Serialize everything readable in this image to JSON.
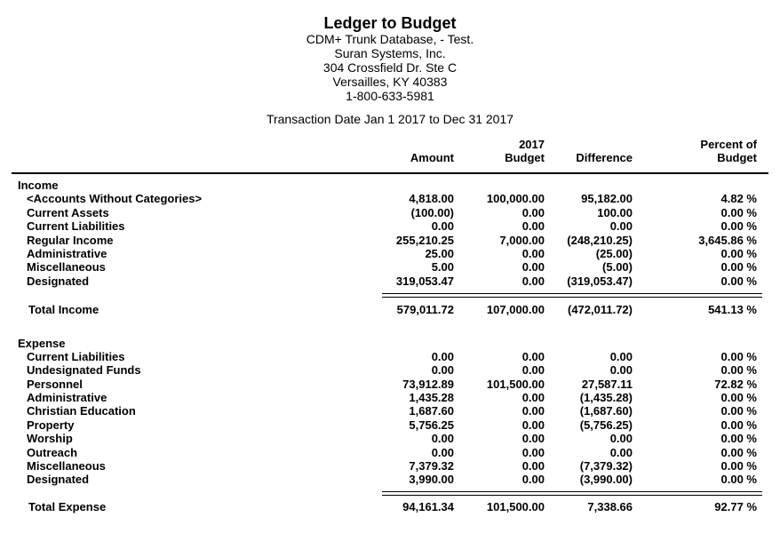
{
  "report": {
    "title": "Ledger to Budget",
    "subtitle_lines": [
      "CDM+ Trunk Database, - Test.",
      "Suran Systems, Inc.",
      "304 Crossfield Dr. Ste C",
      "Versailles, KY 40383",
      "1-800-633-5981"
    ],
    "date_range": "Transaction Date Jan 1 2017 to Dec 31 2017"
  },
  "table": {
    "columns": {
      "amount": "Amount",
      "budget_line1": "2017",
      "budget_line2": "Budget",
      "difference": "Difference",
      "percent_line1": "Percent of",
      "percent_line2": "Budget"
    },
    "sections": [
      {
        "name": "Income",
        "rows": [
          {
            "label": "<Accounts Without Categories>",
            "amount": "4,818.00",
            "budget": "100,000.00",
            "difference": "95,182.00",
            "percent": "4.82 %"
          },
          {
            "label": "Current Assets",
            "amount": "(100.00)",
            "budget": "0.00",
            "difference": "100.00",
            "percent": "0.00 %"
          },
          {
            "label": "Current Liabilities",
            "amount": "0.00",
            "budget": "0.00",
            "difference": "0.00",
            "percent": "0.00 %"
          },
          {
            "label": "Regular Income",
            "amount": "255,210.25",
            "budget": "7,000.00",
            "difference": "(248,210.25)",
            "percent": "3,645.86 %"
          },
          {
            "label": "Administrative",
            "amount": "25.00",
            "budget": "0.00",
            "difference": "(25.00)",
            "percent": "0.00 %"
          },
          {
            "label": "Miscellaneous",
            "amount": "5.00",
            "budget": "0.00",
            "difference": "(5.00)",
            "percent": "0.00 %"
          },
          {
            "label": "Designated",
            "amount": "319,053.47",
            "budget": "0.00",
            "difference": "(319,053.47)",
            "percent": "0.00 %"
          }
        ],
        "total": {
          "label": "Total Income",
          "amount": "579,011.72",
          "budget": "107,000.00",
          "difference": "(472,011.72)",
          "percent": "541.13 %"
        }
      },
      {
        "name": "Expense",
        "rows": [
          {
            "label": "Current Liabilities",
            "amount": "0.00",
            "budget": "0.00",
            "difference": "0.00",
            "percent": "0.00 %"
          },
          {
            "label": "Undesignated Funds",
            "amount": "0.00",
            "budget": "0.00",
            "difference": "0.00",
            "percent": "0.00 %"
          },
          {
            "label": "Personnel",
            "amount": "73,912.89",
            "budget": "101,500.00",
            "difference": "27,587.11",
            "percent": "72.82 %"
          },
          {
            "label": "Administrative",
            "amount": "1,435.28",
            "budget": "0.00",
            "difference": "(1,435.28)",
            "percent": "0.00 %"
          },
          {
            "label": "Christian Education",
            "amount": "1,687.60",
            "budget": "0.00",
            "difference": "(1,687.60)",
            "percent": "0.00 %"
          },
          {
            "label": "Property",
            "amount": "5,756.25",
            "budget": "0.00",
            "difference": "(5,756.25)",
            "percent": "0.00 %"
          },
          {
            "label": "Worship",
            "amount": "0.00",
            "budget": "0.00",
            "difference": "0.00",
            "percent": "0.00 %"
          },
          {
            "label": "Outreach",
            "amount": "0.00",
            "budget": "0.00",
            "difference": "0.00",
            "percent": "0.00 %"
          },
          {
            "label": "Miscellaneous",
            "amount": "7,379.32",
            "budget": "0.00",
            "difference": "(7,379.32)",
            "percent": "0.00 %"
          },
          {
            "label": "Designated",
            "amount": "3,990.00",
            "budget": "0.00",
            "difference": "(3,990.00)",
            "percent": "0.00 %"
          }
        ],
        "total": {
          "label": "Total Expense",
          "amount": "94,161.34",
          "budget": "101,500.00",
          "difference": "7,338.66",
          "percent": "92.77 %"
        }
      }
    ]
  },
  "colors": {
    "text": "#000000",
    "background": "#ffffff"
  }
}
